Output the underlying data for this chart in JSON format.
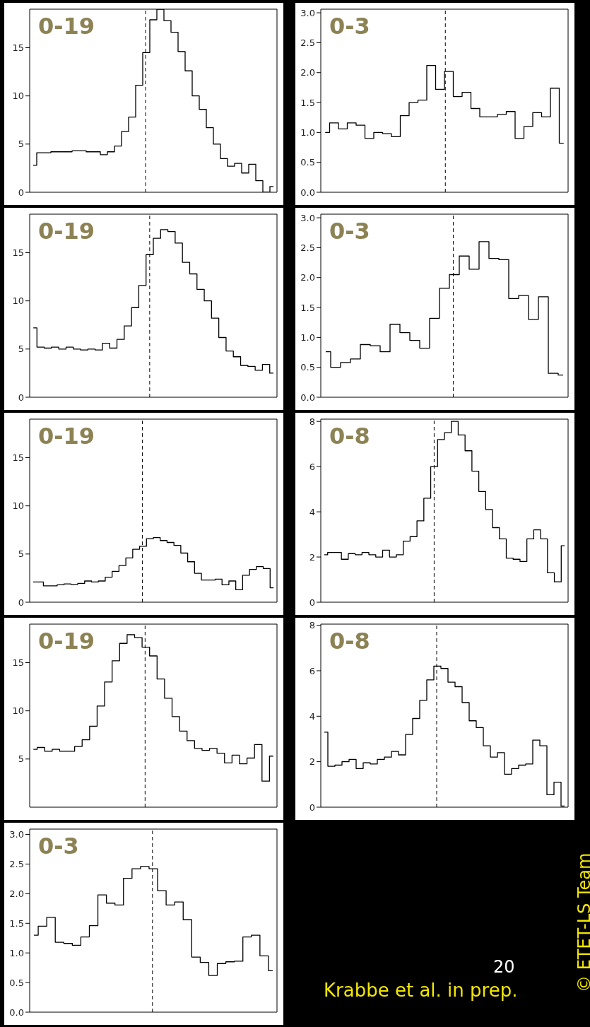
{
  "chart_data": [
    {
      "type": "step",
      "title": "0-19",
      "tick_labels": "y",
      "ylim": [
        0,
        19
      ],
      "yticks": [
        0,
        5,
        10,
        15
      ],
      "categories": [
        null,
        null,
        null,
        null,
        null,
        null,
        null,
        null,
        null,
        null,
        null,
        null,
        null,
        null,
        null,
        null,
        null,
        null,
        null,
        null,
        null,
        null,
        null,
        null,
        null,
        null,
        null,
        null,
        null,
        null,
        null,
        null,
        null,
        null,
        null
      ],
      "values": [
        2.8,
        4.1,
        4.1,
        4.2,
        4.2,
        4.2,
        4.3,
        4.3,
        4.2,
        4.2,
        3.9,
        4.2,
        4.8,
        6.3,
        7.8,
        11.1,
        14.5,
        17.9,
        19,
        17.8,
        16.6,
        14.6,
        12.6,
        10.0,
        8.6,
        6.7,
        5.0,
        3.5,
        2.7,
        3.0,
        2.0,
        2.9,
        1.2,
        0,
        0.6
      ]
    },
    {
      "type": "step",
      "title": "0-3",
      "tick_labels": "y",
      "ylim": [
        0,
        3.06
      ],
      "yticks": [
        {
          "value": 0,
          "label": "0.0"
        },
        {
          "value": 0.5,
          "label": "0.5"
        },
        {
          "value": 1,
          "label": "1.0"
        },
        {
          "value": 1.5,
          "label": "1.5"
        },
        {
          "value": 2,
          "label": "2.0"
        },
        {
          "value": 2.5,
          "label": "2.5"
        },
        {
          "value": 3,
          "label": "3.0"
        }
      ],
      "categories": [
        null,
        null,
        null,
        null,
        null,
        null,
        null,
        null,
        null,
        null,
        null,
        null,
        null,
        null,
        null,
        null,
        null,
        null,
        null,
        null,
        null,
        null,
        null,
        null,
        null,
        null,
        null,
        null
      ],
      "values": [
        1.0,
        1.16,
        1.06,
        1.16,
        1.12,
        0.9,
        1.0,
        0.98,
        0.93,
        1.28,
        1.5,
        1.54,
        2.12,
        1.72,
        2.02,
        1.6,
        1.67,
        1.4,
        1.26,
        1.26,
        1.3,
        1.35,
        0.9,
        1.1,
        1.33,
        1.26,
        1.74,
        0.82
      ]
    },
    {
      "type": "step",
      "title": "0-19",
      "tick_labels": "y",
      "ylim": [
        0,
        19
      ],
      "yticks": [
        0,
        5,
        10,
        15
      ],
      "categories": [
        null,
        null,
        null,
        null,
        null,
        null,
        null,
        null,
        null,
        null,
        null,
        null,
        null,
        null,
        null,
        null,
        null,
        null,
        null,
        null,
        null,
        null,
        null,
        null,
        null,
        null,
        null,
        null,
        null,
        null,
        null,
        null,
        null,
        null
      ],
      "values": [
        7.2,
        5.2,
        5.1,
        5.2,
        5.0,
        5.2,
        5.0,
        4.9,
        5.0,
        4.9,
        5.6,
        5.1,
        6.0,
        7.4,
        9.3,
        11.6,
        14.8,
        16.5,
        17.4,
        17.2,
        16.0,
        14.0,
        12.8,
        11.2,
        10.0,
        8.2,
        6.2,
        4.8,
        4.2,
        3.3,
        3.2,
        2.8,
        3.4,
        2.5
      ]
    },
    {
      "type": "step",
      "title": "0-3",
      "tick_labels": "y",
      "ylim": [
        0,
        3.06
      ],
      "yticks": [
        {
          "value": 0,
          "label": "0.0"
        },
        {
          "value": 0.5,
          "label": "0.5"
        },
        {
          "value": 1,
          "label": "1.0"
        },
        {
          "value": 1.5,
          "label": "1.5"
        },
        {
          "value": 2,
          "label": "2.0"
        },
        {
          "value": 2.5,
          "label": "2.5"
        },
        {
          "value": 3,
          "label": "3.0"
        }
      ],
      "categories": [
        null,
        null,
        null,
        null,
        null,
        null,
        null,
        null,
        null,
        null,
        null,
        null,
        null,
        null,
        null,
        null,
        null,
        null,
        null,
        null,
        null,
        null,
        null,
        null,
        null
      ],
      "values": [
        0.76,
        0.5,
        0.58,
        0.64,
        0.88,
        0.86,
        0.76,
        1.22,
        1.08,
        0.95,
        0.82,
        1.32,
        1.82,
        2.05,
        2.36,
        2.14,
        2.6,
        2.32,
        2.3,
        1.65,
        1.7,
        1.3,
        1.68,
        0.4,
        0.37
      ]
    },
    {
      "type": "step",
      "title": "0-19",
      "tick_labels": "y",
      "ylim": [
        0,
        19
      ],
      "yticks": [
        0,
        5,
        10,
        15
      ],
      "categories": [
        null,
        null,
        null,
        null,
        null,
        null,
        null,
        null,
        null,
        null,
        null,
        null,
        null,
        null,
        null,
        null,
        null,
        null,
        null,
        null,
        null,
        null,
        null,
        null,
        null,
        null,
        null,
        null,
        null,
        null,
        null,
        null,
        null,
        null,
        null,
        null
      ],
      "values": [
        2.1,
        2.1,
        1.7,
        1.7,
        1.8,
        1.9,
        1.85,
        1.95,
        2.2,
        2.1,
        2.2,
        2.6,
        3.2,
        3.8,
        4.6,
        5.5,
        5.8,
        6.6,
        6.7,
        6.4,
        6.2,
        5.9,
        5.1,
        4.2,
        3.0,
        2.3,
        2.3,
        2.4,
        1.8,
        2.2,
        1.3,
        2.8,
        3.4,
        3.7,
        3.5,
        1.5
      ]
    },
    {
      "type": "step",
      "title": "0-8",
      "tick_labels": "y",
      "ylim": [
        0,
        8.1
      ],
      "yticks": [
        0,
        2,
        4,
        6,
        8
      ],
      "categories": [
        null,
        null,
        null,
        null,
        null,
        null,
        null,
        null,
        null,
        null,
        null,
        null,
        null,
        null,
        null,
        null,
        null,
        null,
        null,
        null,
        null,
        null,
        null,
        null,
        null,
        null,
        null,
        null,
        null,
        null,
        null,
        null,
        null,
        null,
        null,
        null
      ],
      "values": [
        2.1,
        2.2,
        2.2,
        1.9,
        2.15,
        2.1,
        2.2,
        2.1,
        2.0,
        2.3,
        2.0,
        2.1,
        2.7,
        2.9,
        3.6,
        4.6,
        6.0,
        7.2,
        7.5,
        8.0,
        7.4,
        6.7,
        5.8,
        4.9,
        4.1,
        3.3,
        2.8,
        1.95,
        1.9,
        1.8,
        2.8,
        3.2,
        2.8,
        1.3,
        0.9,
        2.5
      ]
    },
    {
      "type": "step",
      "title": "0-19",
      "tick_labels": "y",
      "ylim": [
        0,
        19
      ],
      "yticks": [
        5,
        10,
        15
      ],
      "categories": [
        null,
        null,
        null,
        null,
        null,
        null,
        null,
        null,
        null,
        null,
        null,
        null,
        null,
        null,
        null,
        null,
        null,
        null,
        null,
        null,
        null,
        null,
        null,
        null,
        null,
        null,
        null,
        null,
        null,
        null,
        null,
        null,
        null
      ],
      "values": [
        6.0,
        6.2,
        5.8,
        6.0,
        5.8,
        5.8,
        6.3,
        7.0,
        8.4,
        10.5,
        13.0,
        15.2,
        17.0,
        17.9,
        17.6,
        16.6,
        15.7,
        13.3,
        11.3,
        9.4,
        7.9,
        6.9,
        6.1,
        5.9,
        6.1,
        5.6,
        4.6,
        5.4,
        4.5,
        5.1,
        6.5,
        2.7,
        5.3
      ]
    },
    {
      "type": "step",
      "title": "0-8",
      "tick_labels": "y",
      "ylim": [
        0,
        8.05
      ],
      "yticks": [
        0,
        2,
        4,
        6,
        8
      ],
      "categories": [
        null,
        null,
        null,
        null,
        null,
        null,
        null,
        null,
        null,
        null,
        null,
        null,
        null,
        null,
        null,
        null,
        null,
        null,
        null,
        null,
        null,
        null,
        null,
        null,
        null,
        null,
        null,
        null,
        null,
        null,
        null,
        null,
        null,
        null,
        null
      ],
      "values": [
        3.3,
        1.8,
        1.85,
        2.0,
        2.1,
        1.7,
        1.95,
        1.9,
        2.1,
        2.2,
        2.45,
        2.3,
        3.2,
        3.9,
        4.7,
        5.6,
        6.2,
        6.1,
        5.5,
        5.3,
        4.6,
        3.8,
        3.5,
        2.7,
        2.2,
        2.4,
        1.45,
        1.7,
        1.85,
        1.9,
        2.95,
        2.7,
        0.55,
        1.1,
        0.05
      ]
    },
    {
      "type": "step",
      "title": "0-3",
      "tick_labels": "y",
      "ylim": [
        0,
        3.09
      ],
      "yticks": [
        {
          "value": 0,
          "label": "0.0"
        },
        {
          "value": 0.5,
          "label": "0.5"
        },
        {
          "value": 1,
          "label": "1.0"
        },
        {
          "value": 1.5,
          "label": "1.5"
        },
        {
          "value": 2,
          "label": "2.0"
        },
        {
          "value": 2.5,
          "label": "2.5"
        },
        {
          "value": 3,
          "label": "3.0"
        }
      ],
      "categories": [
        null,
        null,
        null,
        null,
        null,
        null,
        null,
        null,
        null,
        null,
        null,
        null,
        null,
        null,
        null,
        null,
        null,
        null,
        null,
        null,
        null,
        null,
        null,
        null,
        null,
        null,
        null,
        null,
        null
      ],
      "values": [
        1.3,
        1.45,
        1.6,
        1.18,
        1.16,
        1.13,
        1.27,
        1.46,
        1.98,
        1.84,
        1.81,
        2.26,
        2.42,
        2.46,
        2.42,
        2.05,
        1.81,
        1.86,
        1.56,
        0.93,
        0.84,
        0.62,
        0.82,
        0.85,
        0.86,
        1.27,
        1.3,
        0.95,
        0.7
      ]
    },
    {
      "type": "other",
      "annotations": [
        "20",
        "Krabbe et al. in prep.",
        "© ETET-LS Team"
      ]
    }
  ]
}
